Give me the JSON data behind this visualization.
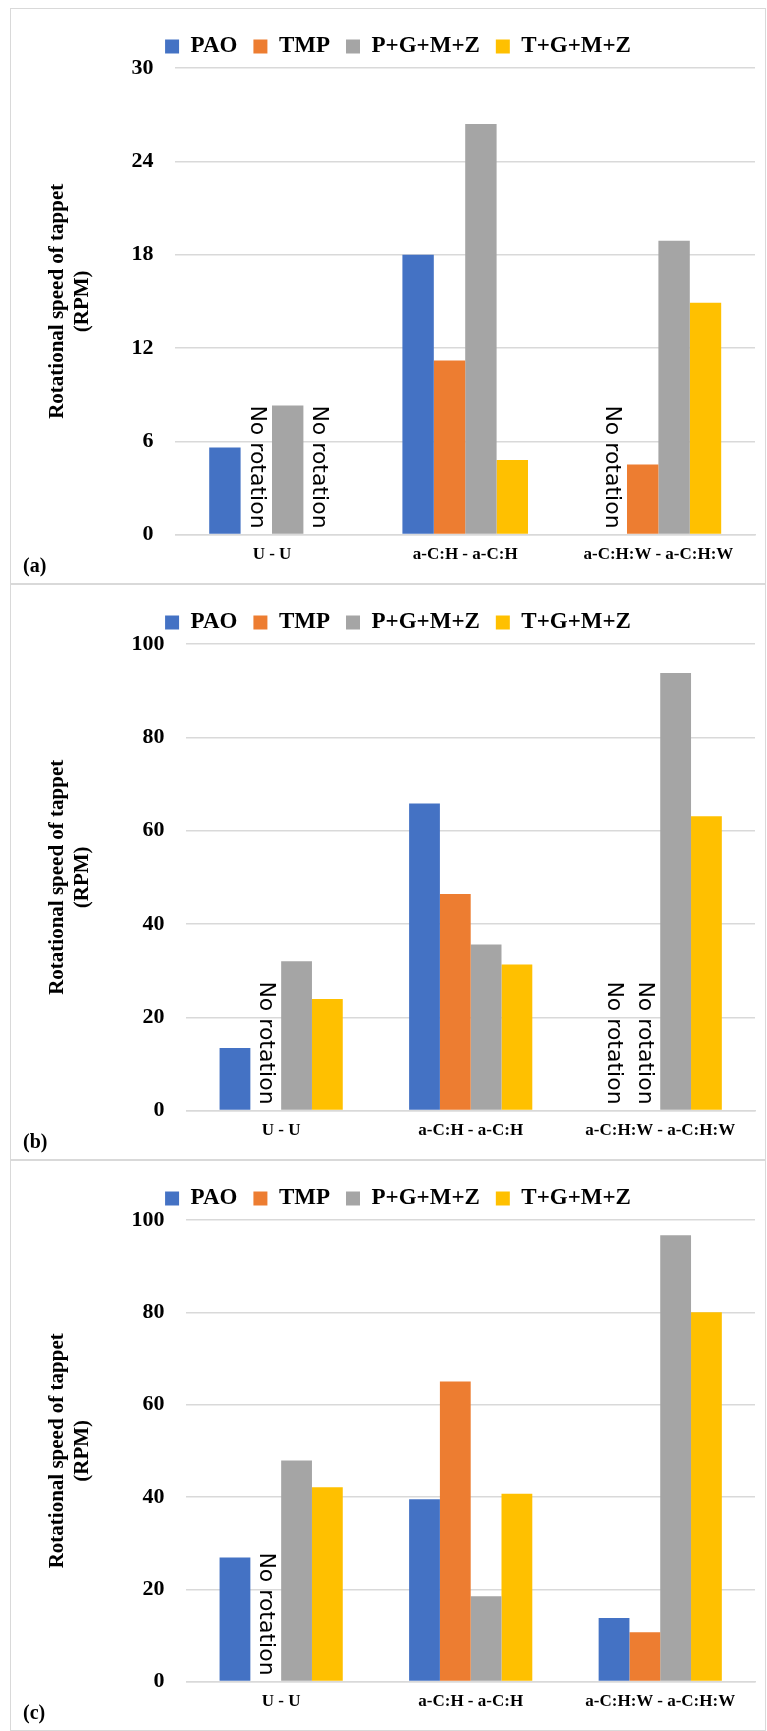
{
  "chart_data": [
    {
      "type": "bar",
      "categories": [
        "U - U",
        "a-C:H - a-C:H",
        "a-C:H:W - a-C:H:W"
      ],
      "ylabel": "Rotational speed of tappet (RPM)",
      "legend": "top",
      "grid": "y",
      "ylim": [
        0,
        30
      ],
      "yticks": [
        0,
        6,
        12,
        18,
        24,
        30
      ],
      "series": [
        {
          "name": "PAO",
          "color": "#4472c4",
          "values": [
            5.6,
            18.0,
            null
          ]
        },
        {
          "name": "TMP",
          "color": "#ed7d31",
          "values": [
            null,
            11.2,
            4.5
          ]
        },
        {
          "name": "P+G+M+Z",
          "color": "#a5a5a5",
          "values": [
            8.3,
            26.4,
            18.9
          ]
        },
        {
          "name": "T+G+M+Z",
          "color": "#ffc000",
          "values": [
            null,
            4.8,
            14.9
          ]
        }
      ],
      "annotations": [
        "(a)",
        {
          "text": "No rotation",
          "x": "U - U",
          "y": 0
        },
        {
          "text": "No rotation",
          "x": "U - U",
          "y": 0
        },
        {
          "text": "No rotation",
          "x": "a-C:H:W - a-C:H:W",
          "y": 0
        }
      ]
    },
    {
      "type": "bar",
      "categories": [
        "U - U",
        "a-C:H - a-C:H",
        "a-C:H:W - a-C:H:W"
      ],
      "ylabel": "Rotational speed of tappet (RPM)",
      "legend": "top",
      "grid": "y",
      "ylim": [
        0,
        100
      ],
      "yticks": [
        0,
        20,
        40,
        60,
        80,
        100
      ],
      "series": [
        {
          "name": "PAO",
          "color": "#4472c4",
          "values": [
            13.4,
            65.8,
            null
          ]
        },
        {
          "name": "TMP",
          "color": "#ed7d31",
          "values": [
            null,
            46.4,
            null
          ]
        },
        {
          "name": "P+G+M+Z",
          "color": "#a5a5a5",
          "values": [
            32.0,
            35.6,
            93.8
          ]
        },
        {
          "name": "T+G+M+Z",
          "color": "#ffc000",
          "values": [
            23.9,
            31.3,
            63.1
          ]
        }
      ],
      "annotations": [
        "(b)",
        {
          "text": "No rotation",
          "x": "U - U",
          "y": 0
        },
        {
          "text": "No rotation",
          "x": "a-C:H:W - a-C:H:W",
          "y": 0
        },
        {
          "text": "No rotation",
          "x": "a-C:H:W - a-C:H:W",
          "y": 0
        }
      ]
    },
    {
      "type": "bar",
      "categories": [
        "U - U",
        "a-C:H - a-C:H",
        "a-C:H:W - a-C:H:W"
      ],
      "ylabel": "Rotational speed of tappet (RPM)",
      "legend": "top",
      "grid": "y",
      "ylim": [
        0,
        100
      ],
      "yticks": [
        0,
        20,
        40,
        60,
        80,
        100
      ],
      "series": [
        {
          "name": "PAO",
          "color": "#4472c4",
          "values": [
            26.9,
            39.5,
            13.8
          ]
        },
        {
          "name": "TMP",
          "color": "#ed7d31",
          "values": [
            null,
            65.0,
            10.7
          ]
        },
        {
          "name": "P+G+M+Z",
          "color": "#a5a5a5",
          "values": [
            47.9,
            18.5,
            96.7
          ]
        },
        {
          "name": "T+G+M+Z",
          "color": "#ffc000",
          "values": [
            42.1,
            40.7,
            80.0
          ]
        }
      ],
      "annotations": [
        "(c)",
        {
          "text": "No rotation",
          "x": "U - U",
          "y": 0
        }
      ]
    }
  ]
}
